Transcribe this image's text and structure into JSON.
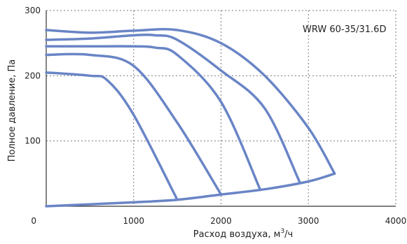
{
  "chart_data": {
    "type": "line",
    "annotation": "WRW 60-35/31.6D",
    "xlabel": "Расход воздуха, м³/ч",
    "xlabel_parts": [
      "Расход воздуха, м",
      "3",
      "/ч"
    ],
    "ylabel": "Полное давление, Па",
    "xlim": [
      0,
      4000
    ],
    "ylim": [
      0,
      300
    ],
    "xticks": [
      0,
      1000,
      2000,
      3000,
      4000
    ],
    "yticks": [
      100,
      200,
      300
    ],
    "xtick_labels": [
      "0",
      "1000",
      "2000",
      "3000",
      "4000"
    ],
    "ytick_labels": [
      "100",
      "200",
      "300"
    ],
    "grid": true,
    "line_color": "#6a85c6",
    "series": [
      {
        "x": [
          0,
          500,
          1000,
          1500,
          2000,
          2500,
          3000,
          3300
        ],
        "y": [
          270,
          266,
          269,
          270,
          250,
          200,
          120,
          50
        ]
      },
      {
        "x": [
          0,
          500,
          1000,
          1250,
          1500,
          2000,
          2500,
          2900
        ],
        "y": [
          255,
          257,
          262,
          262,
          255,
          208,
          150,
          37
        ]
      },
      {
        "x": [
          0,
          500,
          1000,
          1250,
          1500,
          2000,
          2450
        ],
        "y": [
          245,
          245,
          245,
          243,
          232,
          160,
          25
        ]
      },
      {
        "x": [
          0,
          500,
          1000,
          1500,
          2000
        ],
        "y": [
          232,
          232,
          215,
          128,
          18
        ]
      },
      {
        "x": [
          0,
          500,
          700,
          1000,
          1500
        ],
        "y": [
          205,
          200,
          193,
          140,
          10
        ]
      },
      {
        "x": [
          0,
          500,
          1000,
          1500,
          2000,
          2500,
          3000,
          3300
        ],
        "y": [
          0,
          3,
          6,
          10,
          18,
          26,
          38,
          50
        ]
      }
    ]
  }
}
